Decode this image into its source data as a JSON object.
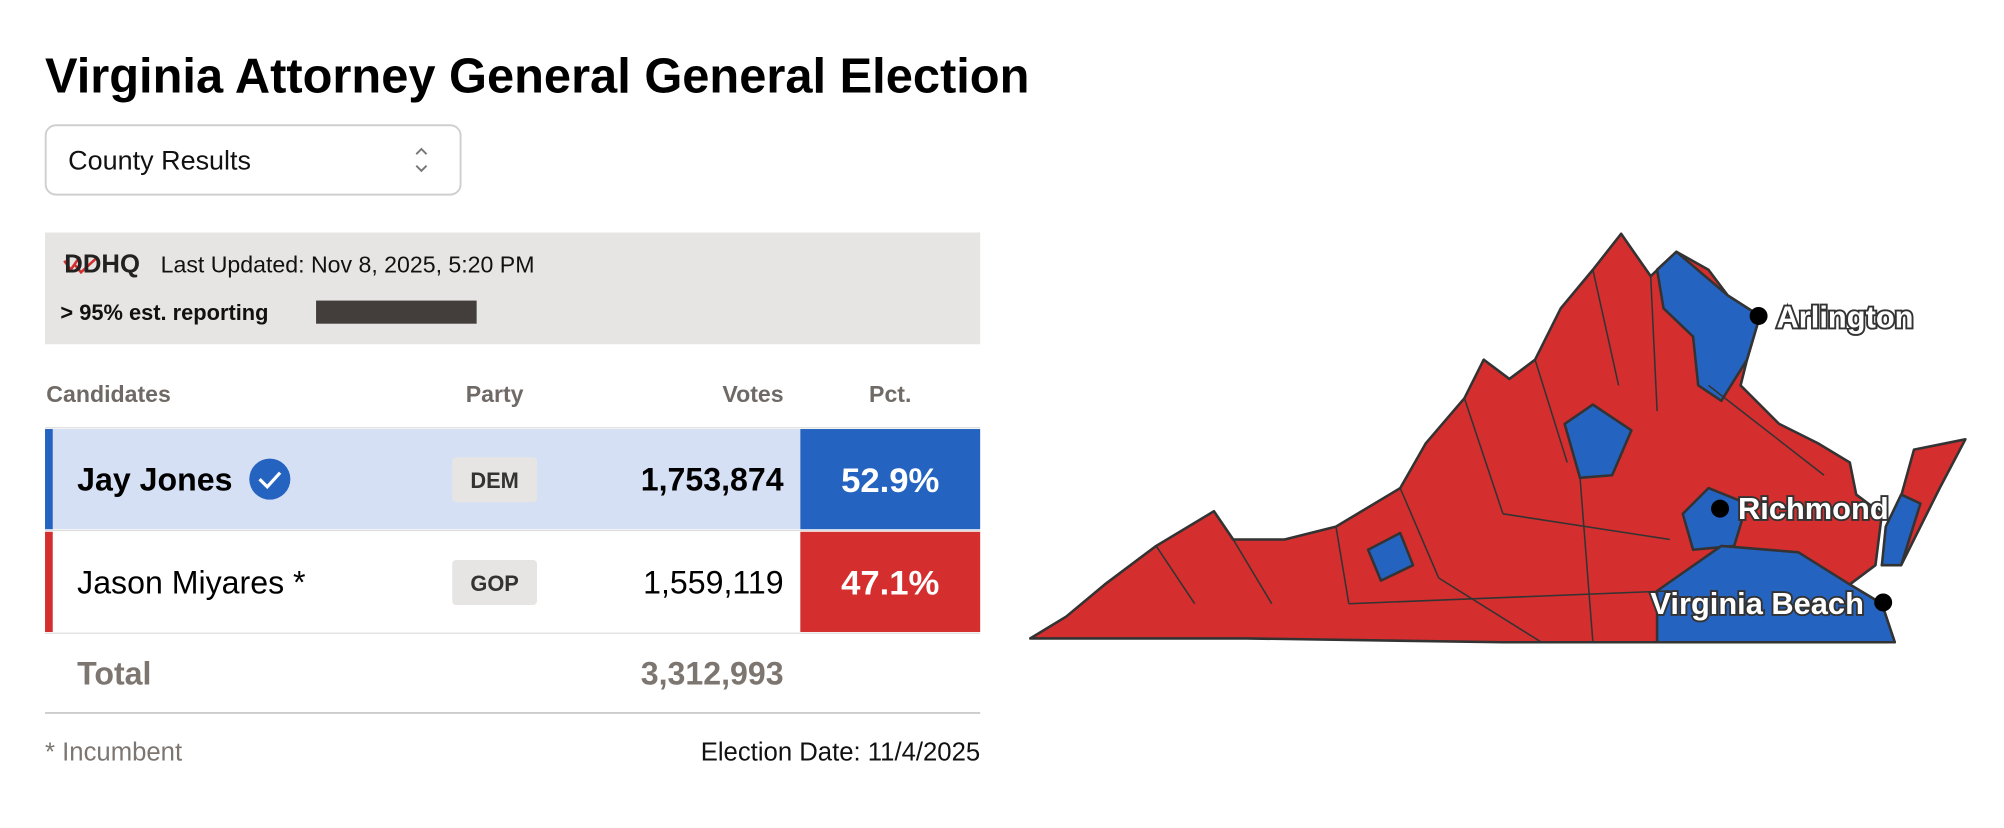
{
  "header": {
    "title": "Virginia Attorney General General Election"
  },
  "selector": {
    "label": "County Results"
  },
  "status": {
    "logo": "DDHQ",
    "last_updated": "Last Updated: Nov 8, 2025, 5:20 PM",
    "reporting": "> 95% est. reporting"
  },
  "table": {
    "columns": [
      "Candidates",
      "Party",
      "Votes",
      "Pct."
    ],
    "rows": [
      {
        "candidate": "Jay Jones",
        "party": "DEM",
        "votes": "1,753,874",
        "pct": "52.9%"
      },
      {
        "candidate": "Jason Miyares *",
        "party": "GOP",
        "votes": "1,559,119",
        "pct": "47.1%"
      }
    ],
    "total": {
      "label": "Total",
      "votes": "3,312,993"
    }
  },
  "footer": {
    "note": "* Incumbent",
    "date": "Election Date: 11/4/2025"
  },
  "map": {
    "labels": [
      "Arlington",
      "Richmond",
      "Virginia Beach"
    ]
  }
}
